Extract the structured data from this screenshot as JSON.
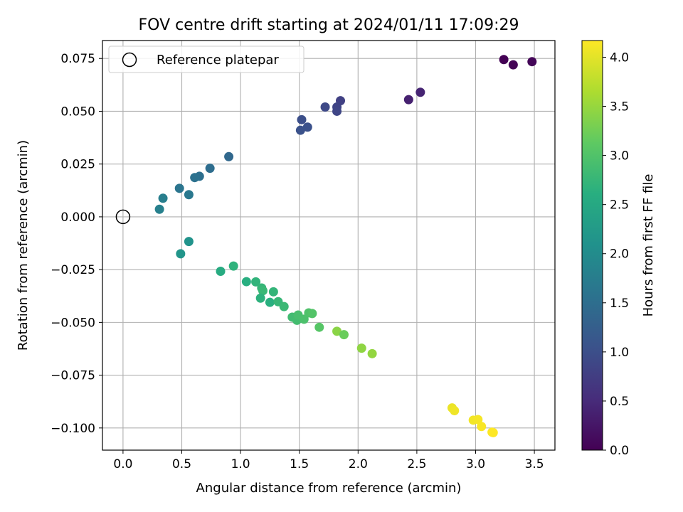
{
  "chart_data": {
    "type": "scatter",
    "title": "FOV centre drift starting at 2024/01/11 17:09:29",
    "xlabel": "Angular distance from reference (arcmin)",
    "ylabel": "Rotation from reference (arcmin)",
    "xlim": [
      -0.175,
      3.675
    ],
    "ylim": [
      -0.1105,
      0.0835
    ],
    "xticks": [
      0.0,
      0.5,
      1.0,
      1.5,
      2.0,
      2.5,
      3.0,
      3.5
    ],
    "xtick_labels": [
      "0.0",
      "0.5",
      "1.0",
      "1.5",
      "2.0",
      "2.5",
      "3.0",
      "3.5"
    ],
    "yticks": [
      -0.1,
      -0.075,
      -0.05,
      -0.025,
      0.0,
      0.025,
      0.05,
      0.075
    ],
    "ytick_labels": [
      "−0.100",
      "−0.075",
      "−0.050",
      "−0.025",
      "0.000",
      "0.025",
      "0.050",
      "0.075"
    ],
    "grid": true,
    "legend": {
      "position": "top-left",
      "entries": [
        "Reference platepar"
      ]
    },
    "reference_point": {
      "x": 0.0,
      "y": 0.0,
      "label": "Reference platepar"
    },
    "colorbar": {
      "label": "Hours from first FF file",
      "range": [
        0.0,
        4.17
      ],
      "ticks": [
        0.0,
        0.5,
        1.0,
        1.5,
        2.0,
        2.5,
        3.0,
        3.5,
        4.0
      ],
      "tick_labels": [
        "0.0",
        "0.5",
        "1.0",
        "1.5",
        "2.0",
        "2.5",
        "3.0",
        "3.5",
        "4.0"
      ],
      "colormap": "viridis"
    },
    "points": [
      {
        "x": 3.24,
        "y": 0.0745,
        "hours": 0.0
      },
      {
        "x": 3.32,
        "y": 0.072,
        "hours": 0.03
      },
      {
        "x": 3.48,
        "y": 0.0735,
        "hours": 0.06
      },
      {
        "x": 2.43,
        "y": 0.0555,
        "hours": 0.38
      },
      {
        "x": 2.53,
        "y": 0.059,
        "hours": 0.42
      },
      {
        "x": 1.85,
        "y": 0.055,
        "hours": 0.8
      },
      {
        "x": 1.82,
        "y": 0.052,
        "hours": 0.85
      },
      {
        "x": 1.82,
        "y": 0.05,
        "hours": 0.88
      },
      {
        "x": 1.72,
        "y": 0.052,
        "hours": 0.92
      },
      {
        "x": 1.52,
        "y": 0.046,
        "hours": 1.0
      },
      {
        "x": 1.57,
        "y": 0.0425,
        "hours": 1.03
      },
      {
        "x": 1.51,
        "y": 0.041,
        "hours": 1.05
      },
      {
        "x": 0.9,
        "y": 0.0285,
        "hours": 1.4
      },
      {
        "x": 0.74,
        "y": 0.023,
        "hours": 1.48
      },
      {
        "x": 0.65,
        "y": 0.0192,
        "hours": 1.52
      },
      {
        "x": 0.61,
        "y": 0.0186,
        "hours": 1.55
      },
      {
        "x": 0.48,
        "y": 0.0135,
        "hours": 1.62
      },
      {
        "x": 0.56,
        "y": 0.0105,
        "hours": 1.66
      },
      {
        "x": 0.34,
        "y": 0.0088,
        "hours": 1.76
      },
      {
        "x": 0.31,
        "y": 0.0036,
        "hours": 1.8
      },
      {
        "x": 0.56,
        "y": -0.0117,
        "hours": 2.12
      },
      {
        "x": 0.49,
        "y": -0.0175,
        "hours": 2.16
      },
      {
        "x": 0.83,
        "y": -0.0258,
        "hours": 2.55
      },
      {
        "x": 0.94,
        "y": -0.0233,
        "hours": 2.68
      },
      {
        "x": 1.05,
        "y": -0.0307,
        "hours": 2.6
      },
      {
        "x": 1.13,
        "y": -0.0308,
        "hours": 2.7
      },
      {
        "x": 1.18,
        "y": -0.0337,
        "hours": 2.74
      },
      {
        "x": 1.19,
        "y": -0.035,
        "hours": 2.78
      },
      {
        "x": 1.17,
        "y": -0.0385,
        "hours": 2.66
      },
      {
        "x": 1.25,
        "y": -0.0405,
        "hours": 2.62
      },
      {
        "x": 1.28,
        "y": -0.0355,
        "hours": 2.72
      },
      {
        "x": 1.32,
        "y": -0.0402,
        "hours": 2.76
      },
      {
        "x": 1.37,
        "y": -0.0425,
        "hours": 2.8
      },
      {
        "x": 1.44,
        "y": -0.0475,
        "hours": 2.86
      },
      {
        "x": 1.48,
        "y": -0.049,
        "hours": 2.88
      },
      {
        "x": 1.49,
        "y": -0.0465,
        "hours": 2.92
      },
      {
        "x": 1.54,
        "y": -0.0485,
        "hours": 2.95
      },
      {
        "x": 1.58,
        "y": -0.0455,
        "hours": 2.98
      },
      {
        "x": 1.61,
        "y": -0.0458,
        "hours": 3.02
      },
      {
        "x": 1.67,
        "y": -0.0523,
        "hours": 3.05
      },
      {
        "x": 1.82,
        "y": -0.0542,
        "hours": 3.42
      },
      {
        "x": 1.88,
        "y": -0.0558,
        "hours": 3.2
      },
      {
        "x": 2.03,
        "y": -0.0622,
        "hours": 3.45
      },
      {
        "x": 2.12,
        "y": -0.0648,
        "hours": 3.48
      },
      {
        "x": 2.8,
        "y": -0.0905,
        "hours": 4.05
      },
      {
        "x": 2.82,
        "y": -0.0918,
        "hours": 4.08
      },
      {
        "x": 2.98,
        "y": -0.0963,
        "hours": 4.1
      },
      {
        "x": 3.02,
        "y": -0.096,
        "hours": 4.12
      },
      {
        "x": 3.05,
        "y": -0.0993,
        "hours": 4.14
      },
      {
        "x": 3.14,
        "y": -0.102,
        "hours": 4.16
      },
      {
        "x": 3.15,
        "y": -0.1022,
        "hours": 4.17
      }
    ]
  }
}
